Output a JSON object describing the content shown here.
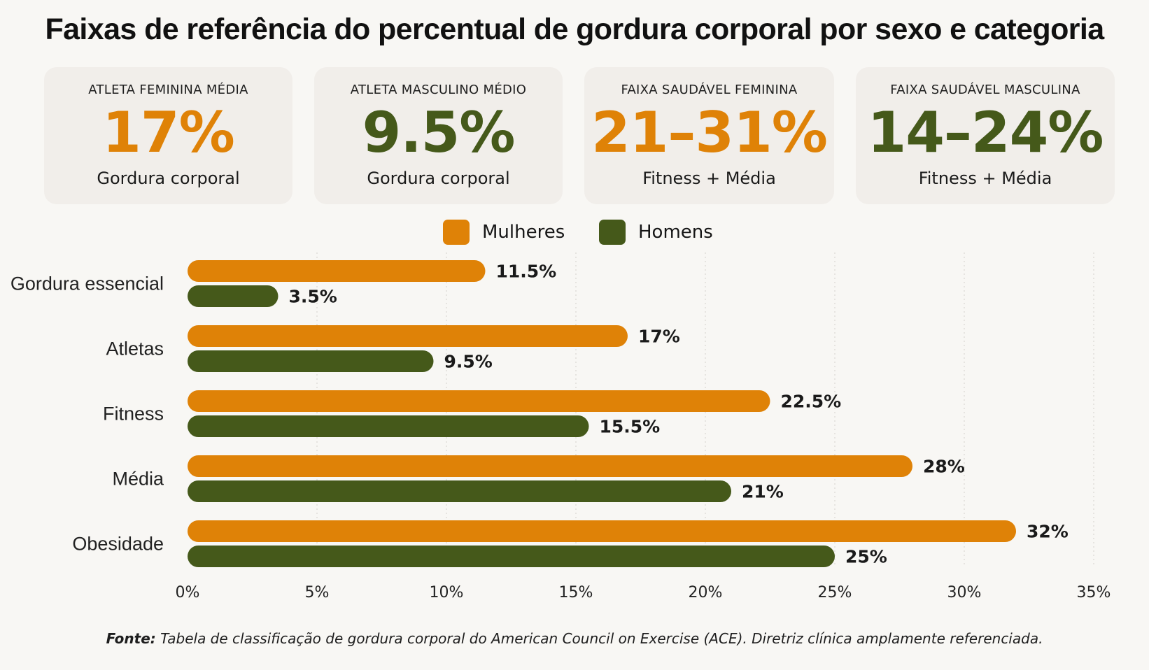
{
  "title": "Faixas de referência do percentual de gordura corporal por sexo e categoria",
  "colors": {
    "women": "#df8207",
    "men": "#45591a"
  },
  "cards": [
    {
      "label": "ATLETA FEMININA MÉDIA",
      "value": "17%",
      "sub": "Gordura corporal",
      "color": "#df8207"
    },
    {
      "label": "ATLETA MASCULINO MÉDIO",
      "value": "9.5%",
      "sub": "Gordura corporal",
      "color": "#45591a"
    },
    {
      "label": "FAIXA SAUDÁVEL FEMININA",
      "value": "21–31%",
      "sub": "Fitness + Média",
      "color": "#df8207"
    },
    {
      "label": "FAIXA SAUDÁVEL MASCULINA",
      "value": "14–24%",
      "sub": "Fitness + Média",
      "color": "#45591a"
    }
  ],
  "legend": {
    "women": "Mulheres",
    "men": "Homens"
  },
  "chart_data": {
    "type": "bar",
    "orientation": "horizontal",
    "categories": [
      "Gordura essencial",
      "Atletas",
      "Fitness",
      "Média",
      "Obesidade"
    ],
    "series": [
      {
        "name": "Mulheres",
        "values": [
          11.5,
          17,
          22.5,
          28,
          32
        ],
        "labels": [
          "11.5%",
          "17%",
          "22.5%",
          "28%",
          "32%"
        ],
        "color": "#df8207"
      },
      {
        "name": "Homens",
        "values": [
          3.5,
          9.5,
          15.5,
          21,
          25
        ],
        "labels": [
          "3.5%",
          "9.5%",
          "15.5%",
          "21%",
          "25%"
        ],
        "color": "#45591a"
      }
    ],
    "xlim": [
      0,
      35
    ],
    "xticks": [
      0,
      5,
      10,
      15,
      20,
      25,
      30,
      35
    ],
    "xtick_labels": [
      "0%",
      "5%",
      "10%",
      "15%",
      "20%",
      "25%",
      "30%",
      "35%"
    ],
    "grid": "vertical-dashed",
    "legend_position": "top-center"
  },
  "source": {
    "prefix": "Fonte:",
    "text": "Tabela de classificação de gordura corporal do American Council on Exercise (ACE). Diretriz clínica amplamente referenciada."
  }
}
